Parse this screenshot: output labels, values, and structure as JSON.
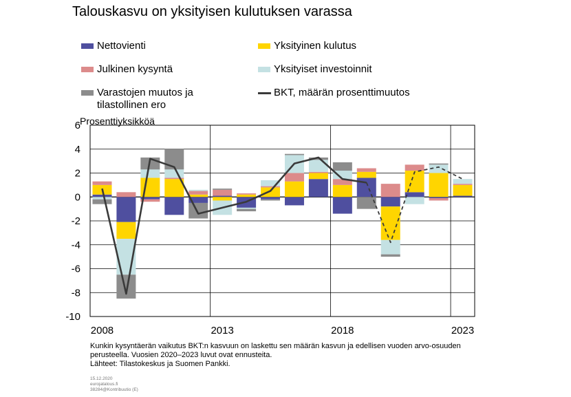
{
  "title": "Talouskasvu on yksityisen kulutuksen varassa",
  "unit_label": "Prosenttiyksikköä",
  "legend": [
    {
      "label": "Nettovienti",
      "color": "#4f4f9f",
      "kind": "bar"
    },
    {
      "label": "Yksityinen kulutus",
      "color": "#ffd500",
      "kind": "bar"
    },
    {
      "label": "Julkinen kysyntä",
      "color": "#dc8b8b",
      "kind": "bar"
    },
    {
      "label": "Yksityiset investoinnit",
      "color": "#c4e1e3",
      "kind": "bar"
    },
    {
      "label": "Varastojen muutos ja",
      "label2": "tilastollinen ero",
      "color": "#8c8c8c",
      "kind": "bar"
    },
    {
      "label": "BKT, määrän prosenttimuutos",
      "color": "#3a3a3a",
      "kind": "line"
    }
  ],
  "chart_data": {
    "type": "bar",
    "stacked": true,
    "x": [
      2008,
      2009,
      2010,
      2011,
      2012,
      2013,
      2014,
      2015,
      2016,
      2017,
      2018,
      2019,
      2020,
      2021,
      2022,
      2023
    ],
    "x_tick_labels": [
      "2008",
      "2013",
      "2018",
      "2023"
    ],
    "ylim": [
      -10,
      6
    ],
    "y_ticks": [
      "6",
      "4",
      "2",
      "0",
      "-2",
      "-4",
      "-6",
      "-8",
      "-10"
    ],
    "grid": true,
    "series": [
      {
        "name": "Nettovienti",
        "color": "#4f4f9f",
        "values": [
          0.2,
          -2.1,
          -0.2,
          -1.5,
          -0.5,
          0.1,
          -0.9,
          -0.2,
          -0.7,
          1.5,
          -1.4,
          1.6,
          -0.8,
          0.4,
          -0.1,
          0.1
        ]
      },
      {
        "name": "Yksityinen kulutus",
        "color": "#ffd500",
        "values": [
          0.8,
          -1.4,
          1.6,
          1.5,
          0.2,
          -0.3,
          0.2,
          0.8,
          1.3,
          0.5,
          1.0,
          0.5,
          -2.8,
          1.8,
          2.0,
          0.9
        ]
      },
      {
        "name": "Julkinen kysyntä",
        "color": "#dc8b8b",
        "values": [
          0.3,
          0.4,
          -0.2,
          0.1,
          0.3,
          0.5,
          0.1,
          0.1,
          0.7,
          0.1,
          0.5,
          0.3,
          1.1,
          0.5,
          -0.2,
          0.1
        ]
      },
      {
        "name": "Yksityiset investoinnit",
        "color": "#c4e1e3",
        "values": [
          -0.2,
          -3.0,
          0.7,
          0.7,
          0.1,
          -1.2,
          -0.1,
          0.5,
          1.5,
          1.0,
          0.7,
          0.0,
          -1.2,
          -0.6,
          0.7,
          0.4
        ]
      },
      {
        "name": "Varastojen muutos ja tilastollinen ero",
        "color": "#8c8c8c",
        "values": [
          -0.4,
          -2.0,
          1.0,
          1.7,
          -1.3,
          0.1,
          -0.2,
          -0.1,
          0.1,
          0.2,
          0.7,
          -1.0,
          -0.2,
          0.0,
          0.1,
          0.0
        ]
      }
    ],
    "line": {
      "name": "BKT, määrän prosenttimuutos",
      "color": "#3a3a3a",
      "values": [
        0.7,
        -8.1,
        3.2,
        2.5,
        -1.4,
        -0.9,
        -0.4,
        0.5,
        2.8,
        3.3,
        1.5,
        1.2,
        -3.8,
        2.1,
        2.5,
        1.5
      ],
      "forecast_from_index": 11
    }
  },
  "note_lines": [
    "Kunkin kysyntäerän vaikutus BKT:n kasvuun on laskettu sen määrän kasvun ja edellisen vuoden arvo-osuuden",
    "perusteella. Vuosien 2020–2023 luvut ovat ennusteita.",
    "Lähteet: Tilastokeskus ja Suomen Pankki."
  ],
  "meta_lines": [
    "15.12.2020",
    "eurojatalous.fi",
    "38284@Kontribuutio (E)"
  ]
}
